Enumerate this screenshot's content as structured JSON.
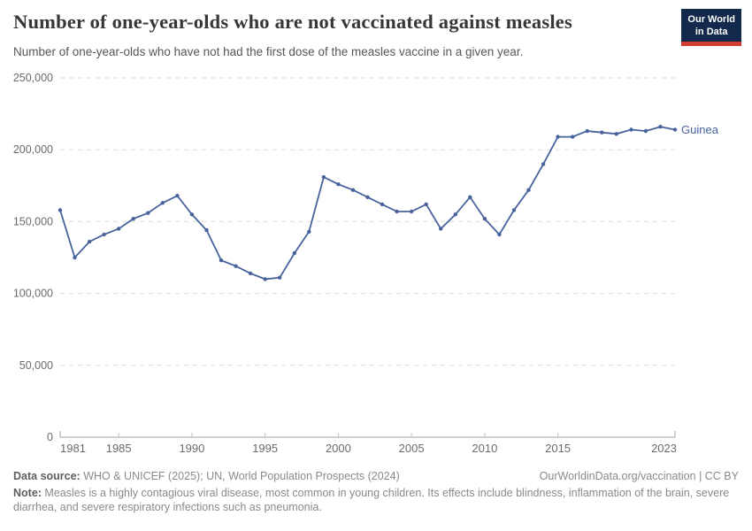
{
  "header": {
    "title": "Number of one-year-olds who are not vaccinated against measles",
    "subtitle": "Number of one-year-olds who have not had the first dose of the measles vaccine in a given year.",
    "logo": {
      "line1": "Our World",
      "line2": "in Data",
      "bg_color": "#12294b",
      "accent_color": "#d13d33"
    }
  },
  "chart_data": {
    "type": "line",
    "title": "Number of one-year-olds who are not vaccinated against measles",
    "xlabel": "",
    "ylabel": "",
    "xlim": [
      1981,
      2023
    ],
    "ylim": [
      0,
      250000
    ],
    "grid": "horizontal-dashed",
    "legend_position": "end-of-line",
    "x_ticks": [
      1981,
      1985,
      1990,
      1995,
      2000,
      2005,
      2010,
      2015,
      2023
    ],
    "y_ticks": [
      0,
      50000,
      100000,
      150000,
      200000,
      250000
    ],
    "y_tick_labels": [
      "0",
      "50,000",
      "100,000",
      "150,000",
      "200,000",
      "250,000"
    ],
    "series": [
      {
        "name": "Guinea",
        "color": "#48639c",
        "x": [
          1981,
          1982,
          1983,
          1984,
          1985,
          1986,
          1987,
          1988,
          1989,
          1990,
          1991,
          1992,
          1993,
          1994,
          1995,
          1996,
          1997,
          1998,
          1999,
          2000,
          2001,
          2002,
          2003,
          2004,
          2005,
          2006,
          2007,
          2008,
          2009,
          2010,
          2011,
          2012,
          2013,
          2014,
          2015,
          2016,
          2017,
          2018,
          2019,
          2020,
          2021,
          2022,
          2023
        ],
        "values": [
          158000,
          125000,
          136000,
          141000,
          145000,
          152000,
          156000,
          163000,
          168000,
          155000,
          144000,
          123000,
          119000,
          114000,
          110000,
          111000,
          128000,
          143000,
          181000,
          176000,
          172000,
          167000,
          162000,
          157000,
          157000,
          162000,
          145000,
          155000,
          167000,
          152000,
          141000,
          158000,
          172000,
          190000,
          209000,
          209000,
          213000,
          212000,
          211000,
          214000,
          213000,
          216000,
          214000
        ]
      }
    ]
  },
  "footer": {
    "datasource_label": "Data source:",
    "datasource": " WHO & UNICEF (2025); UN, World Population Prospects (2024)",
    "link": "OurWorldinData.org/vaccination | CC BY",
    "note_label": "Note:",
    "note": " Measles is a highly contagious viral disease, most common in young children. Its effects include blindness, inflammation of the brain, severe diarrhea, and severe respiratory infections such as pneumonia."
  }
}
